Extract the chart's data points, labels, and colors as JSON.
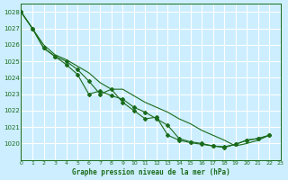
{
  "title": "Graphe pression niveau de la mer (hPa)",
  "xlim": [
    0,
    23
  ],
  "ylim": [
    1019.0,
    1028.5
  ],
  "yticks": [
    1020,
    1021,
    1022,
    1023,
    1024,
    1025,
    1026,
    1027,
    1028
  ],
  "xticks": [
    0,
    1,
    2,
    3,
    4,
    5,
    6,
    7,
    8,
    9,
    10,
    11,
    12,
    13,
    14,
    15,
    16,
    17,
    18,
    19,
    20,
    21,
    22,
    23
  ],
  "bg_color": "#cceeff",
  "grid_color": "#ffffff",
  "line_color": "#1a6b1a",
  "series": [
    [
      1028.0,
      1027.0,
      1025.8,
      1025.3,
      1024.8,
      1024.2,
      1023.0,
      1023.2,
      1022.9,
      1022.7,
      1022.2,
      1021.9,
      1021.5,
      1021.1,
      1020.3,
      1020.1,
      1020.0,
      1019.85,
      1019.8,
      1019.95,
      1020.2,
      1020.3,
      1020.5
    ],
    [
      1028.0,
      1027.0,
      1025.8,
      1025.3,
      1025.0,
      1024.5,
      1023.8,
      1023.0,
      1023.3,
      1022.5,
      1022.0,
      1021.5,
      1021.6,
      1020.5,
      1020.2,
      1020.05,
      1019.95,
      1019.85,
      1019.75,
      1019.95,
      1020.2,
      1020.3,
      1020.5
    ],
    [
      1028.0,
      1027.0,
      1026.0,
      1025.4,
      1025.1,
      1024.7,
      1024.3,
      1023.7,
      1023.3,
      1023.3,
      1022.9,
      1022.5,
      1022.2,
      1021.9,
      1021.5,
      1021.2,
      1020.8,
      1020.5,
      1020.2,
      1019.85,
      1020.0,
      1020.2,
      1020.5
    ]
  ],
  "series_has_markers": [
    true,
    true,
    false
  ]
}
